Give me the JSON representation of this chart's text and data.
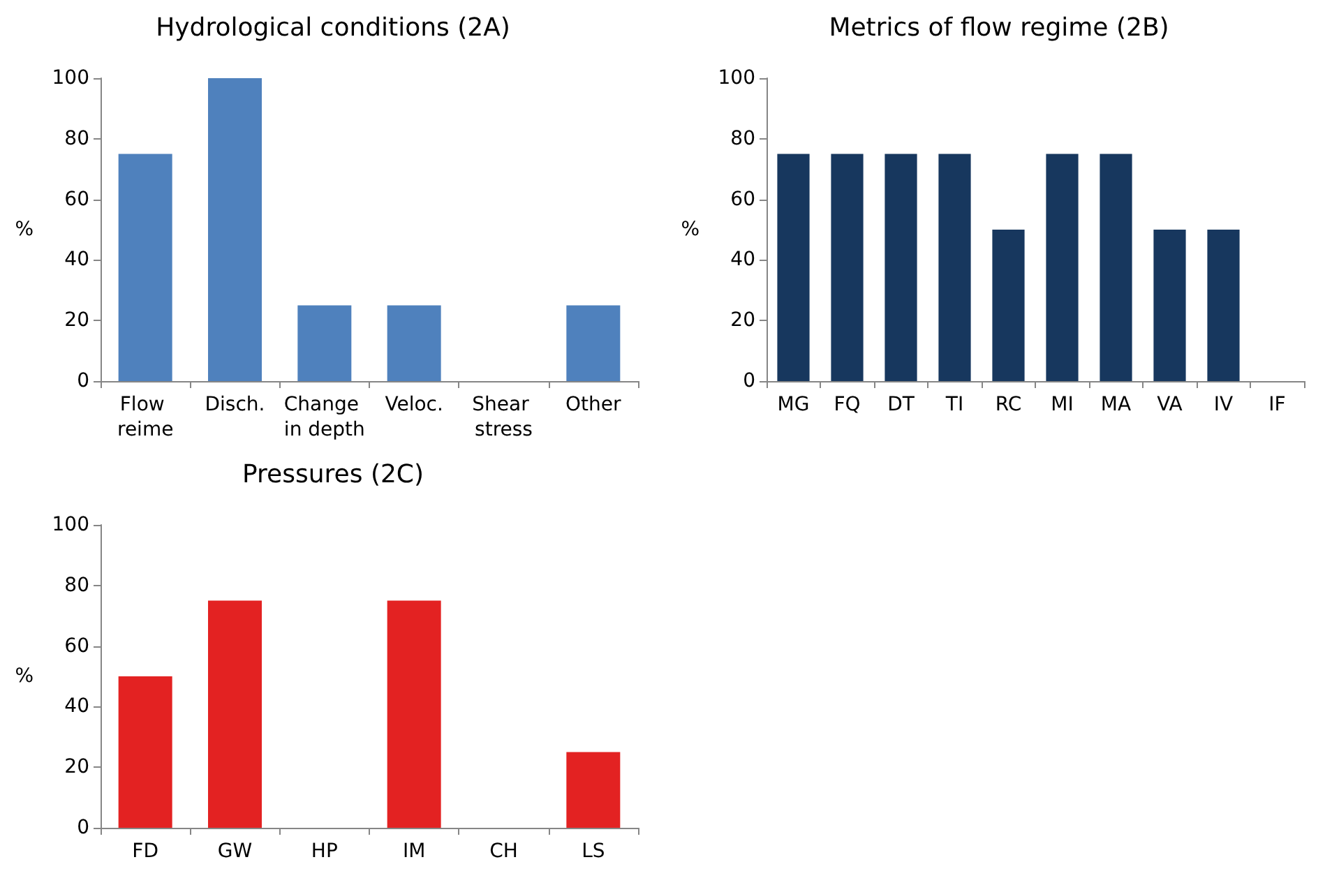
{
  "chart_data": [
    {
      "type": "bar",
      "title": "Hydrological conditions (2A)",
      "ylabel": "%",
      "categories": [
        "Flow reime",
        "Disch.",
        "Change in depth",
        "Veloc.",
        "Shear stress",
        "Other"
      ],
      "values": [
        75,
        100,
        25,
        25,
        0,
        25
      ],
      "color": "#4f81bd",
      "ylim": [
        0,
        100
      ],
      "yticks": [
        0,
        20,
        40,
        60,
        80,
        100
      ]
    },
    {
      "type": "bar",
      "title": "Metrics of flow regime (2B)",
      "ylabel": "%",
      "categories": [
        "MG",
        "FQ",
        "DT",
        "TI",
        "RC",
        "MI",
        "MA",
        "VA",
        "IV",
        "IF"
      ],
      "values": [
        75,
        75,
        75,
        75,
        50,
        75,
        75,
        50,
        50,
        0
      ],
      "color": "#17375e",
      "ylim": [
        0,
        100
      ],
      "yticks": [
        0,
        20,
        40,
        60,
        80,
        100
      ]
    },
    {
      "type": "bar",
      "title": "Pressures (2C)",
      "ylabel": "%",
      "categories": [
        "FD",
        "GW",
        "HP",
        "IM",
        "CH",
        "LS"
      ],
      "values": [
        50,
        75,
        0,
        75,
        0,
        25
      ],
      "color": "#e32222",
      "ylim": [
        0,
        100
      ],
      "yticks": [
        0,
        20,
        40,
        60,
        80,
        100
      ]
    }
  ]
}
